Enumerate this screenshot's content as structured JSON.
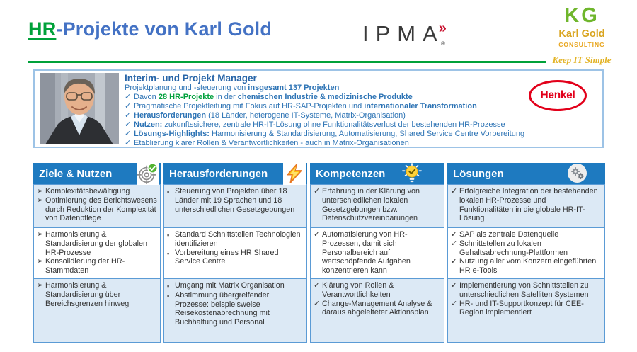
{
  "header": {
    "title_hr": "HR",
    "title_rest": "-Projekte von Karl Gold",
    "ipma": {
      "text": "IPMA",
      "chevrons": "»",
      "registered": "®"
    },
    "kg": {
      "initials": "KG",
      "name": "Karl Gold",
      "subtitle": "—CONSULTING—",
      "tagline": "Keep IT Simple"
    }
  },
  "profile": {
    "heading": "Interim- und Projekt Manager",
    "sub_prefix": "Projektplanung und -steuerung von ",
    "sub_bold": "insgesamt 137 Projekten",
    "henkel_label": "Henkel",
    "bullets": [
      {
        "segments": [
          {
            "text": "Davon "
          },
          {
            "text": "28 HR-Projekte",
            "style": "greenbold"
          },
          {
            "text": " in der "
          },
          {
            "text": "chemischen Industrie & medizinische Produkte",
            "style": "bold"
          }
        ]
      },
      {
        "segments": [
          {
            "text": "Pragmatische Projektleitung mit Fokus auf HR-SAP-Projekten und "
          },
          {
            "text": "internationaler Transformation",
            "style": "bold"
          }
        ]
      },
      {
        "segments": [
          {
            "text": "Herausforderungen",
            "style": "bold"
          },
          {
            "text": " (18 Länder, heterogene IT-Systeme, Matrix-Organisation)"
          }
        ]
      },
      {
        "segments": [
          {
            "text": "Nutzen:",
            "style": "bold"
          },
          {
            "text": " zukunftssichere, zentrale HR-IT-Lösung ohne Funktionalitätsverlust der bestehenden HR-Prozesse"
          }
        ]
      },
      {
        "segments": [
          {
            "text": "Lösungs-Highlights:",
            "style": "bold"
          },
          {
            "text": " Harmonisierung & Standardisierung, Automatisierung, Shared Service Centre Vorbereitung"
          }
        ]
      },
      {
        "segments": [
          {
            "text": "Etablierung klarer Rollen & Verantwortlichkeiten - auch in Matrix-Organisationen"
          }
        ]
      }
    ]
  },
  "table": {
    "columns": [
      {
        "label": "Ziele & Nutzen",
        "icon": "target-check-icon"
      },
      {
        "label": "Herausforderungen",
        "icon": "lightning-icon"
      },
      {
        "label": "Kompetenzen",
        "icon": "lightbulb-icon"
      },
      {
        "label": "Lösungen",
        "icon": "gears-icon"
      }
    ],
    "rows": [
      [
        {
          "bullet": "arrow",
          "items": [
            "Komplexitätsbewältigung",
            "Optimierung des Berichtswesens durch Reduktion der Komplexität von Datenpflege"
          ]
        },
        {
          "bullet": "square",
          "items": [
            "Steuerung von Projekten über 18 Länder mit 19 Sprachen und 18 unterschiedlichen Gesetzgebungen"
          ]
        },
        {
          "bullet": "check",
          "items": [
            "Erfahrung in der Klärung von unterschiedlichen lokalen Gesetzgebungen bzw. Datenschutzvereinbarungen"
          ]
        },
        {
          "bullet": "check",
          "items": [
            "Erfolgreiche Integration der bestehenden lokalen HR-Prozesse und Funktionalitäten in die globale HR-IT-Lösung"
          ]
        }
      ],
      [
        {
          "bullet": "arrow",
          "items": [
            "Harmonisierung & Standardisierung der globalen HR-Prozesse",
            "Konsolidierung der HR-Stammdaten"
          ]
        },
        {
          "bullet": "square",
          "items": [
            "Standard Schnittstellen Technologien identifizieren",
            "Vorbereitung eines HR Shared Service Centre"
          ]
        },
        {
          "bullet": "check",
          "items": [
            "Automatisierung von HR-Prozessen, damit sich Personalbereich auf wertschöpfende Aufgaben konzentrieren kann"
          ]
        },
        {
          "bullet": "check",
          "items": [
            "SAP als zentrale Datenquelle",
            "Schnittstellen zu lokalen Gehaltsabrechnung-Plattformen",
            "Nutzung aller vom Konzern eingeführten HR e-Tools"
          ]
        }
      ],
      [
        {
          "bullet": "arrow",
          "items": [
            "Harmonisierung & Standardisierung über Bereichsgrenzen hinweg"
          ]
        },
        {
          "bullet": "square",
          "items": [
            "Umgang mit Matrix Organisation",
            "Abstimmung übergreifender Prozesse: beispielsweise Reisekostenabrechnung mit Buchhaltung und Personal"
          ]
        },
        {
          "bullet": "check",
          "items": [
            "Klärung von Rollen & Verantwortlichkeiten",
            "Change-Management Analyse & daraus abgeleiteter Aktionsplan"
          ]
        },
        {
          "bullet": "check",
          "items": [
            "Implementierung von Schnittstellen zu unterschiedlichen Satelliten Systemen",
            "HR- und IT-Supportkonzept für CEE-Region implementiert"
          ]
        }
      ]
    ]
  },
  "glyphs": {
    "check": "✓",
    "arrow": "➢",
    "square": "▪"
  },
  "colors": {
    "title_blue": "#4472C4",
    "accent_green": "#00A13A",
    "profile_blue": "#2E74B5",
    "header_blue": "#1E7AC0",
    "row_alt_blue": "#DCE9F5",
    "henkel_red": "#E2001A",
    "kg_green": "#6FB62C",
    "kg_gold": "#D9A520"
  }
}
